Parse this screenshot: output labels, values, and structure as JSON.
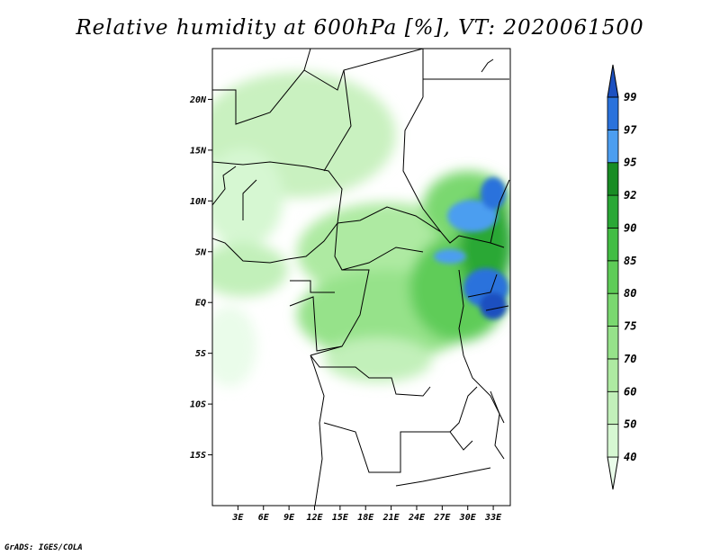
{
  "title": "Relative humidity at 600hPa [%], VT: 2020061500",
  "footer": "GrADS: IGES/COLA",
  "map": {
    "lon_range": [
      0,
      35
    ],
    "lat_range": [
      -20,
      25
    ],
    "lat_ticks": [
      {
        "value": 20,
        "label": "20N"
      },
      {
        "value": 15,
        "label": "15N"
      },
      {
        "value": 10,
        "label": "10N"
      },
      {
        "value": 5,
        "label": "5N"
      },
      {
        "value": 0,
        "label": "EQ"
      },
      {
        "value": -5,
        "label": "5S"
      },
      {
        "value": -10,
        "label": "10S"
      },
      {
        "value": -15,
        "label": "15S"
      }
    ],
    "lon_ticks": [
      {
        "value": 3,
        "label": "3E"
      },
      {
        "value": 6,
        "label": "6E"
      },
      {
        "value": 9,
        "label": "9E"
      },
      {
        "value": 12,
        "label": "12E"
      },
      {
        "value": 15,
        "label": "15E"
      },
      {
        "value": 18,
        "label": "18E"
      },
      {
        "value": 21,
        "label": "21E"
      },
      {
        "value": 24,
        "label": "24E"
      },
      {
        "value": 27,
        "label": "27E"
      },
      {
        "value": 30,
        "label": "30E"
      },
      {
        "value": 33,
        "label": "33E"
      }
    ]
  },
  "colorbar": {
    "levels": [
      "40",
      "50",
      "60",
      "70",
      "75",
      "80",
      "85",
      "90",
      "92",
      "95",
      "97",
      "99"
    ],
    "colors": [
      "#eafcea",
      "#d6f7d2",
      "#c2f0ba",
      "#aeeaa2",
      "#96e28a",
      "#7ad870",
      "#5ecc58",
      "#42bd44",
      "#2aa836",
      "#188c24",
      "#4c9ef0",
      "#2a72dc",
      "#1c50c0"
    ]
  }
}
